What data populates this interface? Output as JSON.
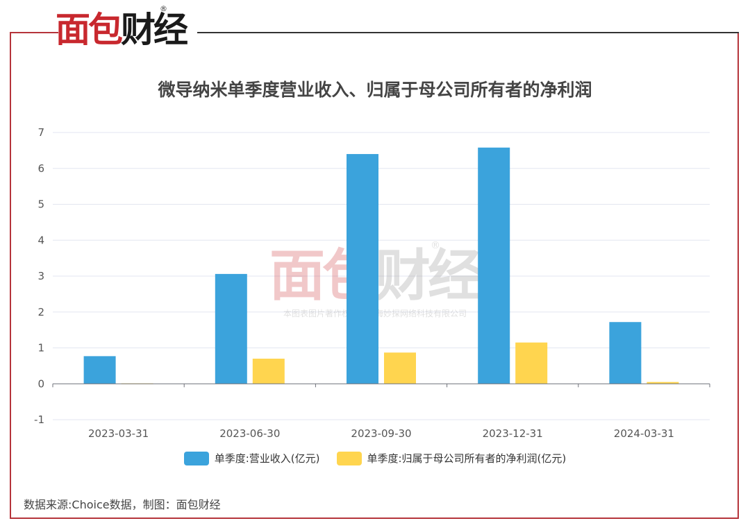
{
  "brand": {
    "logo_red": "面包",
    "logo_black": "财经",
    "logo_mark": "®"
  },
  "title": "微导纳米单季度营业收入、归属于母公司所有者的净利润",
  "watermark": {
    "logo_red": "面包",
    "logo_black": "财经",
    "mark": "®",
    "notice": "本图表图片著作权属于上海妙探网络科技有限公司"
  },
  "source_note": "数据来源:Choice数据，制图：面包财经",
  "chart_data": {
    "type": "bar",
    "title": "微导纳米单季度营业收入、归属于母公司所有者的净利润",
    "categories": [
      "2023-03-31",
      "2023-06-30",
      "2023-09-30",
      "2023-12-31",
      "2024-03-31"
    ],
    "series": [
      {
        "name": "单季度:营业收入(亿元)",
        "color": "#3ba3dc",
        "values": [
          0.77,
          3.06,
          6.4,
          6.58,
          1.72
        ]
      },
      {
        "name": "单季度:归属于母公司所有者的净利润(亿元)",
        "color": "#ffd54f",
        "values": [
          0.01,
          0.7,
          0.87,
          1.15,
          0.05
        ]
      }
    ],
    "y_ticks": [
      "7",
      "6",
      "5",
      "4",
      "3",
      "2",
      "1",
      "0",
      "-1"
    ],
    "ylim": [
      -1,
      7
    ],
    "grid": true,
    "legend_position": "bottom"
  }
}
